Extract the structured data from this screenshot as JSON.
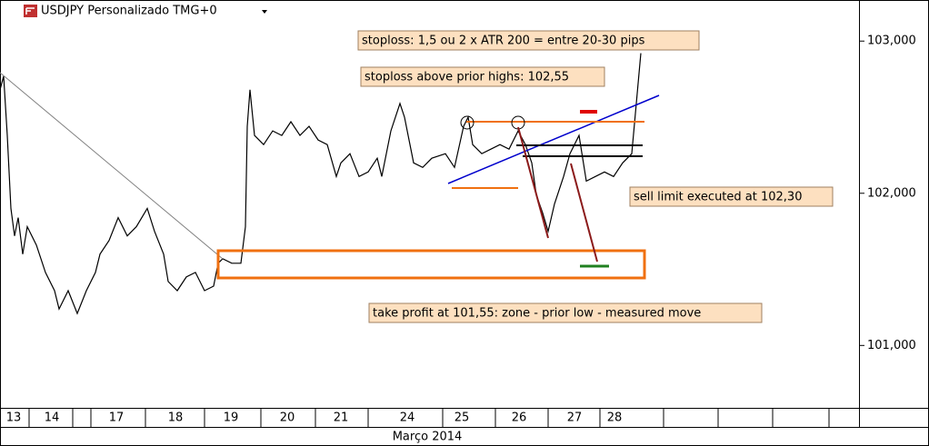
{
  "chart_data": {
    "type": "line",
    "title": "USDJPY Personalizado TMG+0",
    "x_label": "Março 2014",
    "color": "#000000",
    "x": [
      0,
      0.4,
      0.8,
      1.2,
      1.6,
      2.0,
      2.5,
      3.0,
      4.0,
      5.0,
      6.0,
      6.5,
      7.5,
      8.5,
      9.5,
      10.5,
      11.0,
      12.0,
      13.0,
      14.0,
      15.0,
      16.2,
      17.0,
      18.0,
      18.5,
      19.5,
      20.5,
      21.5,
      22.5,
      23.5,
      24.0,
      24.5,
      25.5,
      26.5,
      27.0,
      27.2,
      27.5,
      28.0,
      29.0,
      30.0,
      31.0,
      32.0,
      33.0,
      34.0,
      35.0,
      36.0,
      37.0,
      37.5,
      38.5,
      39.5,
      40.5,
      41.5,
      42.0,
      43.0,
      44.0,
      44.5,
      45.5,
      46.5,
      47.5,
      49.0,
      50.0,
      51.0,
      51.5,
      52.0,
      53.0,
      54.0,
      55.0,
      56.0,
      57.0,
      57.8,
      58.5,
      59.0,
      59.7,
      60.3,
      61.0,
      62.0,
      62.7,
      63.7,
      64.5,
      65.5,
      66.5,
      67.5,
      68.5,
      69.5,
      70.0,
      70.5
    ],
    "values": [
      102.68,
      102.77,
      102.38,
      101.9,
      101.72,
      101.84,
      101.6,
      101.78,
      101.66,
      101.48,
      101.36,
      101.24,
      101.36,
      101.21,
      101.36,
      101.48,
      101.6,
      101.69,
      101.84,
      101.72,
      101.78,
      101.9,
      101.75,
      101.6,
      101.42,
      101.36,
      101.45,
      101.48,
      101.36,
      101.39,
      101.54,
      101.57,
      101.54,
      101.54,
      101.78,
      102.44,
      102.68,
      102.38,
      102.32,
      102.41,
      102.38,
      102.47,
      102.38,
      102.44,
      102.35,
      102.32,
      102.11,
      102.2,
      102.26,
      102.11,
      102.14,
      102.23,
      102.11,
      102.41,
      102.59,
      102.5,
      102.2,
      102.17,
      102.23,
      102.26,
      102.17,
      102.44,
      102.5,
      102.32,
      102.26,
      102.29,
      102.32,
      102.29,
      102.41,
      102.32,
      102.2,
      101.99,
      101.87,
      101.75,
      101.93,
      102.11,
      102.26,
      102.38,
      102.08,
      102.11,
      102.14,
      102.11,
      102.2,
      102.26,
      102.59,
      102.92
    ],
    "xlim": [
      0,
      94.5
    ],
    "xticks": [
      {
        "value": 1.5,
        "label": "13"
      },
      {
        "value": 5.7,
        "label": "14"
      },
      {
        "value": 12.8,
        "label": "17"
      },
      {
        "value": 19.3,
        "label": "18"
      },
      {
        "value": 25.4,
        "label": "19"
      },
      {
        "value": 31.6,
        "label": "20"
      },
      {
        "value": 37.5,
        "label": "21"
      },
      {
        "value": 44.8,
        "label": "24"
      },
      {
        "value": 50.8,
        "label": "25"
      },
      {
        "value": 57.1,
        "label": "26"
      },
      {
        "value": 63.2,
        "label": "27"
      },
      {
        "value": 67.6,
        "label": "28"
      }
    ],
    "ylim": [
      100.59,
      103.27
    ],
    "yticks": [
      {
        "value": 101,
        "label": "101,000"
      },
      {
        "value": 102,
        "label": "102,000"
      },
      {
        "value": 103,
        "label": "103,000"
      }
    ],
    "annotations": [
      "stoploss: 1,5 ou 2 x ATR 200 = entre 20-30 pips",
      "stoploss above prior highs: 102,55",
      "sell limit executed at 102,30",
      "take profit at 101,55: zone - prior low - measured move"
    ]
  }
}
